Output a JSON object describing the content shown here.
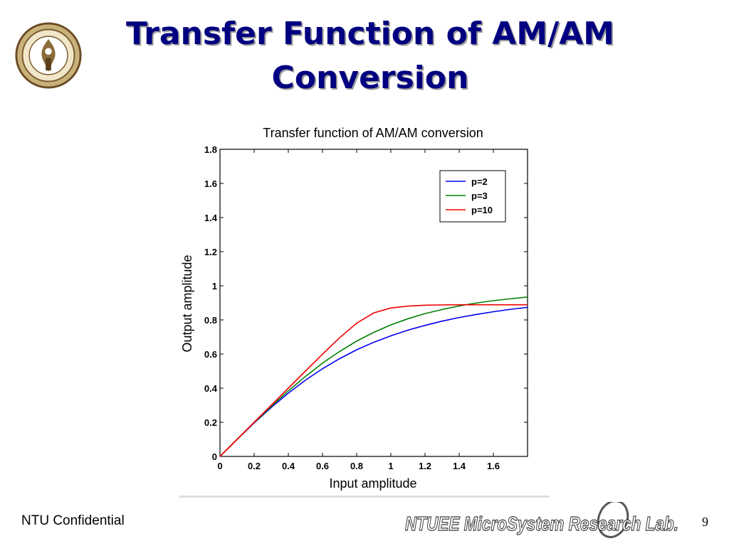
{
  "slide": {
    "title_line1": "Transfer Function of AM/AM",
    "title_line2": "Conversion",
    "footer_left": "NTU Confidential",
    "lab_name": "NTUEE MicroSystem Research Lab.",
    "page_number": "9"
  },
  "chart_data": {
    "type": "line",
    "title": "Transfer function of AM/AM conversion",
    "xlabel": "Input amplitude",
    "ylabel": "Output amplitude",
    "xlim": [
      0,
      1.8
    ],
    "ylim": [
      0,
      1.8
    ],
    "xticks": [
      "0",
      "0.2",
      "0.4",
      "0.6",
      "0.8",
      "1",
      "1.2",
      "1.4",
      "1.6"
    ],
    "yticks": [
      "0",
      "0.2",
      "0.4",
      "0.6",
      "0.8",
      "1",
      "1.2",
      "1.4",
      "1.6",
      "1.8"
    ],
    "legend_position": "top-right",
    "grid": false,
    "x": [
      0,
      0.1,
      0.2,
      0.3,
      0.4,
      0.5,
      0.6,
      0.7,
      0.8,
      0.9,
      1.0,
      1.1,
      1.2,
      1.3,
      1.4,
      1.5,
      1.6,
      1.7,
      1.8
    ],
    "series": [
      {
        "name": "p=2",
        "color": "#0000ee",
        "values": [
          0,
          0.1,
          0.196,
          0.287,
          0.371,
          0.447,
          0.514,
          0.573,
          0.625,
          0.669,
          0.707,
          0.74,
          0.768,
          0.793,
          0.814,
          0.832,
          0.848,
          0.862,
          0.874
        ]
      },
      {
        "name": "p=3",
        "color": "#008000",
        "values": [
          0,
          0.1,
          0.198,
          0.293,
          0.384,
          0.469,
          0.547,
          0.615,
          0.676,
          0.727,
          0.771,
          0.807,
          0.837,
          0.861,
          0.882,
          0.899,
          0.913,
          0.924,
          0.934
        ]
      },
      {
        "name": "p=10",
        "color": "#ee0000",
        "values": [
          0,
          0.1,
          0.2,
          0.3,
          0.4,
          0.5,
          0.599,
          0.695,
          0.781,
          0.841,
          0.87,
          0.881,
          0.886,
          0.888,
          0.889,
          0.889,
          0.889,
          0.889,
          0.889
        ]
      }
    ]
  }
}
